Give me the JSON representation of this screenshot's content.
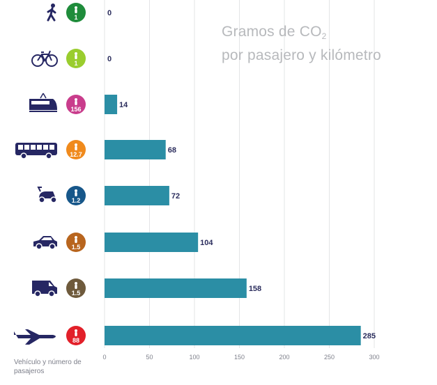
{
  "chart_data": {
    "type": "bar",
    "orientation": "horizontal",
    "title_line1": "Gramos de CO",
    "title_sub": "2",
    "title_line2": "por pasajero y kilómetro",
    "xlabel": "Vehículo y número de pasajeros",
    "xlim": [
      0,
      300
    ],
    "xticks": [
      0,
      50,
      100,
      150,
      200,
      250,
      300
    ],
    "grid": true,
    "bar_color": "#2b8ea5",
    "label_color": "#2a2c5c",
    "icon_color": "#262763",
    "categories": [
      {
        "icon": "walking-person-icon",
        "passengers": "1",
        "badge_color": "#1f8c3b",
        "value": 0
      },
      {
        "icon": "bicycle-icon",
        "passengers": "1",
        "badge_color": "#9acd2e",
        "value": 0
      },
      {
        "icon": "tram-icon",
        "passengers": "156",
        "badge_color": "#c93d8c",
        "value": 14
      },
      {
        "icon": "bus-icon",
        "passengers": "12.7",
        "badge_color": "#f08a1c",
        "value": 68
      },
      {
        "icon": "scooter-icon",
        "passengers": "1.2",
        "badge_color": "#17578a",
        "value": 72
      },
      {
        "icon": "car-icon",
        "passengers": "1.5",
        "badge_color": "#b8651e",
        "value": 104
      },
      {
        "icon": "van-icon",
        "passengers": "1.5",
        "badge_color": "#6e5a3c",
        "value": 158
      },
      {
        "icon": "airplane-icon",
        "passengers": "88",
        "badge_color": "#e2202a",
        "value": 285
      }
    ]
  }
}
